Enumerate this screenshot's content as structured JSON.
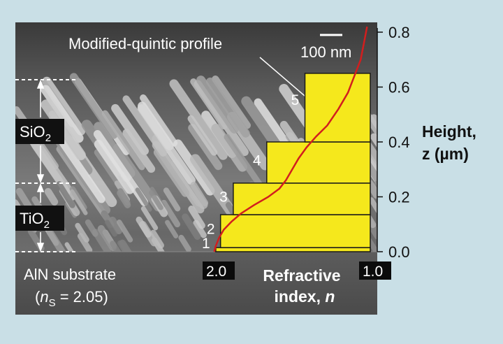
{
  "figure": {
    "profile_label": "Modified-quintic profile",
    "scale_bar_label": "100 nm",
    "layer_labels": {
      "top_main": "SiO",
      "top_sub": "2",
      "bottom_main": "TiO",
      "bottom_sub": "2"
    },
    "substrate_label": "AlN substrate",
    "substrate_index": {
      "open": "(",
      "symbol": "n",
      "subscript": "S",
      "value": " = 2.05)"
    },
    "y_axis": {
      "label_line1": "Height,",
      "label_line2": "z (µm)",
      "ticks": [
        "0.8",
        "0.6",
        "0.4",
        "0.2",
        "0.0"
      ]
    },
    "x_axis": {
      "label_line1": "Refractive",
      "label_line2_text": "index, ",
      "label_line2_symbol": "n",
      "left_tick": "2.0",
      "right_tick": "1.0"
    },
    "step_labels": [
      "1",
      "2",
      "3",
      "4",
      "5"
    ],
    "colors": {
      "background": "#c9dfe6",
      "step_fill": "#f5e81c",
      "profile_curve": "#d21e1e",
      "micrograph": "#6a6a6a"
    }
  },
  "chart_data": {
    "type": "step-profile",
    "xlabel": "Refractive index, n",
    "ylabel": "Height, z (µm)",
    "xlim": [
      2.0,
      1.0
    ],
    "ylim": [
      0.0,
      0.8
    ],
    "steps": [
      {
        "label": "1",
        "n": 1.97,
        "z_bottom": 0.0,
        "z_top": 0.015
      },
      {
        "label": "2",
        "n": 1.94,
        "z_bottom": 0.015,
        "z_top": 0.135
      },
      {
        "label": "3",
        "n": 1.86,
        "z_bottom": 0.135,
        "z_top": 0.25
      },
      {
        "label": "4",
        "n": 1.65,
        "z_bottom": 0.25,
        "z_top": 0.4
      },
      {
        "label": "5",
        "n": 1.41,
        "z_bottom": 0.4,
        "z_top": 0.65
      }
    ],
    "profile": {
      "name": "Modified-quintic profile",
      "points": [
        [
          1.98,
          0.0
        ],
        [
          1.97,
          0.02
        ],
        [
          1.95,
          0.05
        ],
        [
          1.92,
          0.08
        ],
        [
          1.87,
          0.11
        ],
        [
          1.81,
          0.14
        ],
        [
          1.73,
          0.17
        ],
        [
          1.64,
          0.2
        ],
        [
          1.57,
          0.23
        ],
        [
          1.53,
          0.26
        ],
        [
          1.49,
          0.3
        ],
        [
          1.45,
          0.34
        ],
        [
          1.4,
          0.38
        ],
        [
          1.34,
          0.42
        ],
        [
          1.27,
          0.46
        ],
        [
          1.2,
          0.52
        ],
        [
          1.14,
          0.58
        ],
        [
          1.1,
          0.64
        ],
        [
          1.06,
          0.7
        ],
        [
          1.04,
          0.76
        ],
        [
          1.02,
          0.82
        ]
      ]
    },
    "layer_boundaries_z": {
      "substrate_top": 0.0,
      "TiO2_SiO2": 0.25,
      "top": 0.65
    }
  }
}
